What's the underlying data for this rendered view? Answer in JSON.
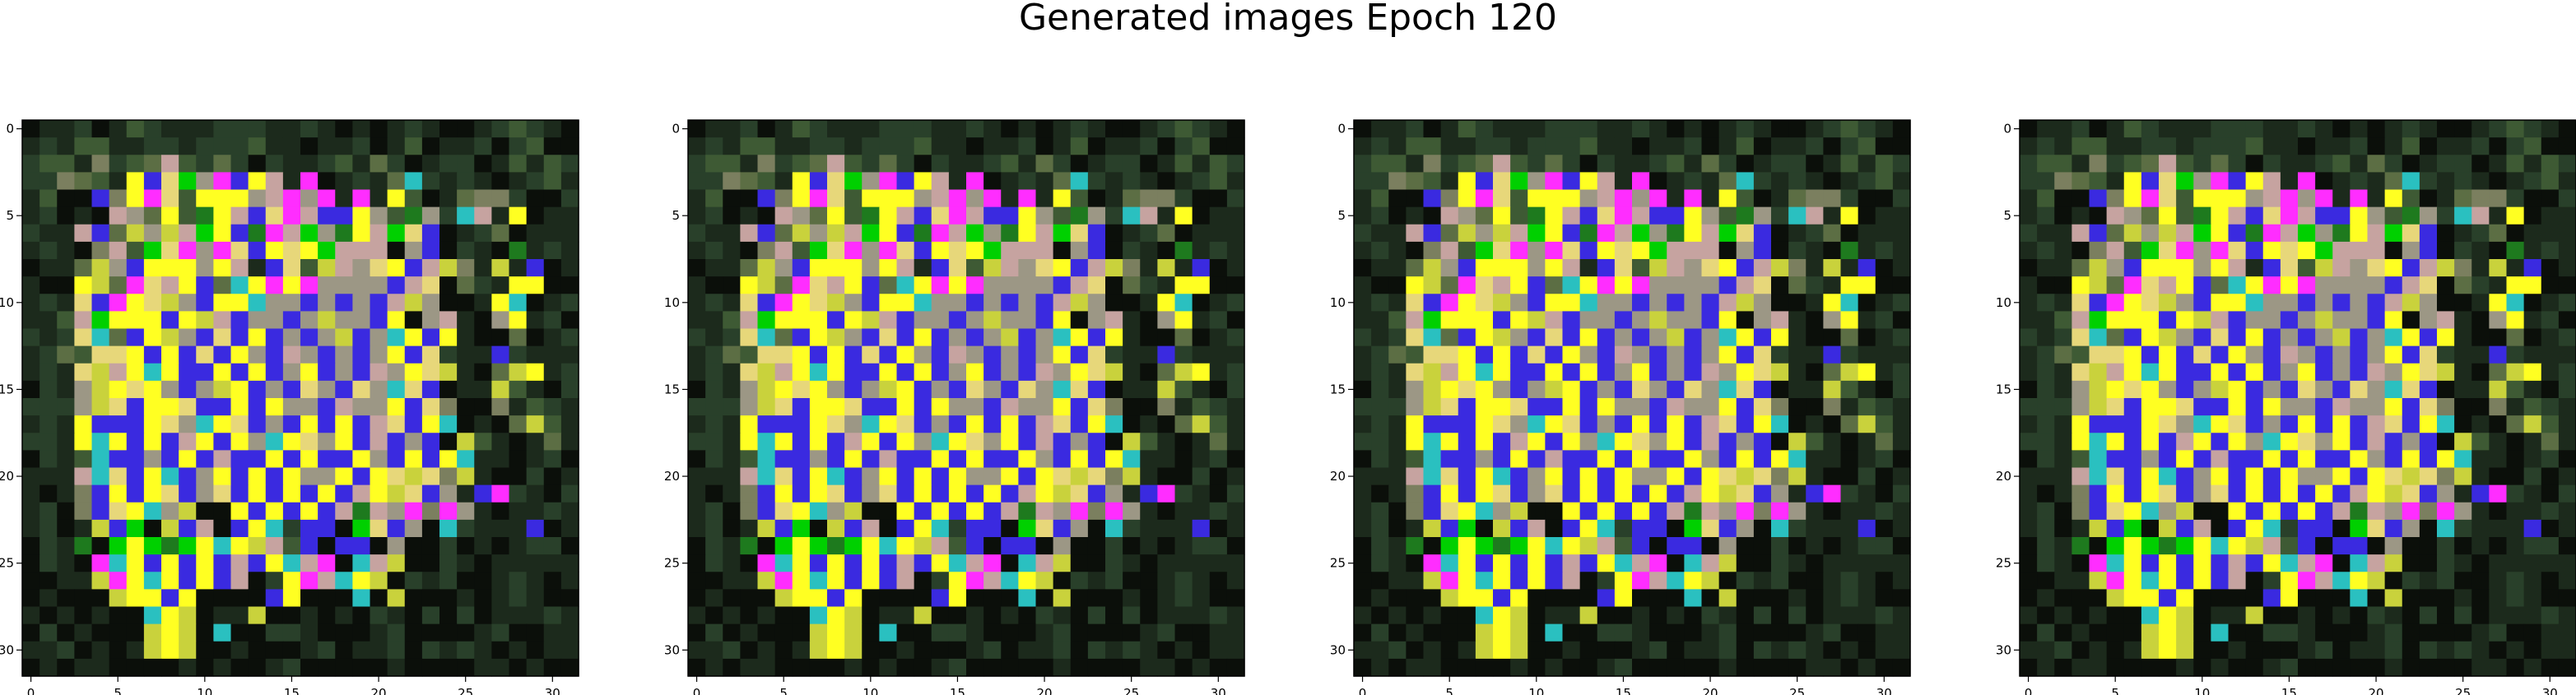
{
  "title": "Generated images Epoch 120",
  "chart_data": {
    "type": "heatmap",
    "title": "Generated images Epoch 120",
    "panel_count": 4,
    "xlim": [
      -0.5,
      31.5
    ],
    "ylim": [
      31.5,
      -0.5
    ],
    "xticks": [
      0,
      5,
      10,
      15,
      20,
      25,
      30
    ],
    "yticks": [
      0,
      5,
      10,
      15,
      20,
      25,
      30
    ],
    "grid": false,
    "palette": [
      "#0b0f0a",
      "#1c2a1c",
      "#29402a",
      "#3e5a34",
      "#5c6e44",
      "#7b7f5f",
      "#9c9785",
      "#c6a3a0",
      "#e7d77a",
      "#ffff22",
      "#ff2dff",
      "#3a2ae0",
      "#1e7a1e",
      "#00d000",
      "#2ac0c0",
      "#c9d23c",
      "#a4a4a4",
      "#8a7ab8",
      "#c08a20",
      "#6f4ca6"
    ],
    "images": [
      {
        "rows": [
          "0112013211122211210101210012321011",
          "1213311221222311011201301120230001",
          "2331523473242021123142012201313220",
          "2254319b8d6ab971a01214e212101231",
          "1300b59a8399967a6a1a1930145520021",
          "1201076493c97b8a7bb963c62e71901121",
          "2117b4f6f7d9bca7d6c97d8b012401112",
          "1210573d8a6a8b989d77706b0210c1211",
          "0114f6b9996971b83f7689b7f51f1b0101",
          "1009f4a879b4e9a9a6666b780421990011",
          "1218ba98f6b99e66b6b6b7f60019e0122",
          "1137d999b9f7b66b6f66b906710691201",
          "2128e4b9f6b8b9b6b6fb6e9b9100401212",
          "1243889b9b8b96b76b6b69b8211b21110",
          "1218f79e9bb9b9b69b6b7698f104f9121",
          "0216f9896b6f9b6b86b86e8b011f31022",
          "2226f8b998bb9b966b7669b8500513211",
          "1219bbb986e98b6b9b9b78b9e0104f311",
          "2219e9b9b79b96e9869b7b6b0f31014101",
          "0213ebb6b9b7bb9b9bb96b9b9e1101203",
          "1117e8b9eb69b9b9669b98f85f1002011",
          "1015b9b98b68b9b9b9b79f8b61ba2102",
          "1205b89e6f009b9b9b7c76a5a6101121",
          "1201fbd0fb70b9e2bb0d8b60e2111b01",
          "021c0d9dcd9e9f73b0bb060020101220",
          "0210ae9b9b9b7b9e7a0e7f0021011111",
          "0011fa9e9b9b7029a7e9f02120012101",
          "01000f99b90000b9000e0f000101210",
          "1010100e9f011f00101021020201112",
          "0201000f9f0e00221000120000120011",
          "1120101f9f001000120112021210101",
          "0101100001010012000001000011010"
        ]
      },
      {
        "rows": [
          "0112013211122211210101210012321011",
          "1213311221222311011201301120230001",
          "2331523473242021123142012201313220",
          "2254319b8d6ab971a01214e212101231",
          "1300b59a8399967a6a1a1930145520021",
          "1201076493c97b8a7bb963c62e71901121",
          "2117b4f6f7d9bca7d6c97d8b012401112",
          "1210573d8a6a8b989d77706b0210c1211",
          "0114f6b9996971b83f7689b7f51f1b0101",
          "1009f4a879b4e9a9a6666b780421990011",
          "1218ba98f6b99e66b6b6b7f60019e0122",
          "1137d999b9f7b66b6f66b906710691201",
          "2128e4b9f6b8b9b6b6fb6e9b9100401212",
          "1243889b9b8b96b76b6b69b8211b21110",
          "1218f79e9bb9b9b69b6b7698f104f9121",
          "0216f9896b6f9b6b86b86e8b011f31022",
          "2226f8b998bb9b966b7669b8500513211",
          "1219bbb986e98b6b9b9b78b9e0104f311",
          "2219e9b9b79b96e9869b7b6b0f31014101",
          "0213ebb6b9b7bb9b9bb96b9b9e1101203",
          "1117e8b9eb69b9b9669b98f85f1002011",
          "1015b9b98b68b9b9b9b79f8b61ba2102",
          "1205b89e6f009b9b9b7c76a5a6101121",
          "1201fbd0fb70b9e2bb0d8b60e2111b01",
          "021c0d9dcd9e9f73b0bb060020101220",
          "0210ae9b9b9b7b9e7a0e7f0021011111",
          "0011fa9e9b9b7029a7e9f02120012101",
          "01000f99b90000b9000e0f000101210",
          "1010100e9f011f00101021020201112",
          "0201000f9f0e00221000120000120011",
          "1120101f9f001000120112021210101",
          "0101100001010012000001000011010"
        ]
      },
      {
        "rows": [
          "0112013211122211210101210012321011",
          "1213311221222311011201301120230001",
          "2331523473242021123142012201313220",
          "2254319b8d6ab971a01214e212101231",
          "1300b59a8399967a6a1a1930145520021",
          "1201076493c97b8a7bb963c62e71901121",
          "2117b4f6f7d9bca7d6c97d8b012401112",
          "1210573d8a6a8b989d77706b0210c1211",
          "0114f6b9996971b83f7689b7f51f1b0101",
          "1009f4a879b4e9a9a6666b780421990011",
          "1218ba98f6b99e66b6b6b7f60019e0122",
          "1137d999b9f7b66b6f66b906710691201",
          "2128e4b9f6b8b9b6b6fb6e9b9100401212",
          "1243889b9b8b96b76b6b69b8211b21110",
          "1218f79e9bb9b9b69b6b7698f104f9121",
          "0216f9896b6f9b6b86b86e8b011f31022",
          "2226f8b998bb9b966b7669b8500513211",
          "1219bbb986e98b6b9b9b78b9e0104f311",
          "2219e9b9b79b96e9869b7b6b0f31014101",
          "0213ebb6b9b7bb9b9bb96b9b9e1101203",
          "1117e8b9eb69b9b9669b98f85f1002011",
          "1015b9b98b68b9b9b9b79f8b61ba2102",
          "1205b89e6f009b9b9b7c76a5a6101121",
          "1201fbd0fb70b9e2bb0d8b60e2111b01",
          "021c0d9dcd9e9f73b0bb060020101220",
          "0210ae9b9b9b7b9e7a0e7f0021011111",
          "0011fa9e9b9b7029a7e9f02120012101",
          "01000f99b90000b9000e0f000101210",
          "1010100e9f011f00101021020201112",
          "0201000f9f0e00221000120000120011",
          "1120101f9f001000120112021210101",
          "0101100001010012000001000011010"
        ]
      },
      {
        "rows": [
          "0112013211122211210101210012321011",
          "1213311221222311011201301120230001",
          "2331523473242021123142012201313220",
          "2254319b8d6ab971a01214e212101231",
          "1300b59a8399967a6a1a1930145520021",
          "1201076493c97b8a7bb963c62e71901121",
          "2117b4f6f7d9bca7d6c97d8b012401112",
          "1210573d8a6a8b989d77706b0210c1211",
          "0114f6b9996971b83f7689b7f51f1b0101",
          "1009f4a879b4e9a9a6666b780421990011",
          "1218ba98f6b99e66b6b6b7f60019e0122",
          "1137d999b9f7b66b6f66b906710691201",
          "2128e4b9f6b8b9b6b6fb6e9b9100401212",
          "1243889b9b8b96b76b6b69b8211b21110",
          "1218f79e9bb9b9b69b6b7698f104f9121",
          "0216f9896b6f9b6b86b86e8b011f31022",
          "2226f8b998bb9b966b7669b8500513211",
          "1219bbb986e98b6b9b9b78b9e0104f311",
          "2219e9b9b79b96e9869b7b6b0f31014101",
          "0213ebb6b9b7bb9b9bb96b9b9e1101203",
          "1117e8b9eb69b9b9669b98f85f1002011",
          "1015b9b98b68b9b9b9b79f8b61ba2102",
          "1205b89e6f009b9b9b7c76a5a6101121",
          "1201fbd0fb70b9e2bb0d8b60e2111b01",
          "021c0d9dcd9e9f73b0bb060020101220",
          "0210ae9b9b9b7b9e7a0e7f0021011111",
          "0011fa9e9b9b7029a7e9f02120012101",
          "01000f99b90000b9000e0f000101210",
          "1010100e9f011f00101021020201112",
          "0201000f9f0e00221000120000120011",
          "1120101f9f001000120112021210101",
          "0101100001010012000001000011010"
        ]
      }
    ]
  }
}
